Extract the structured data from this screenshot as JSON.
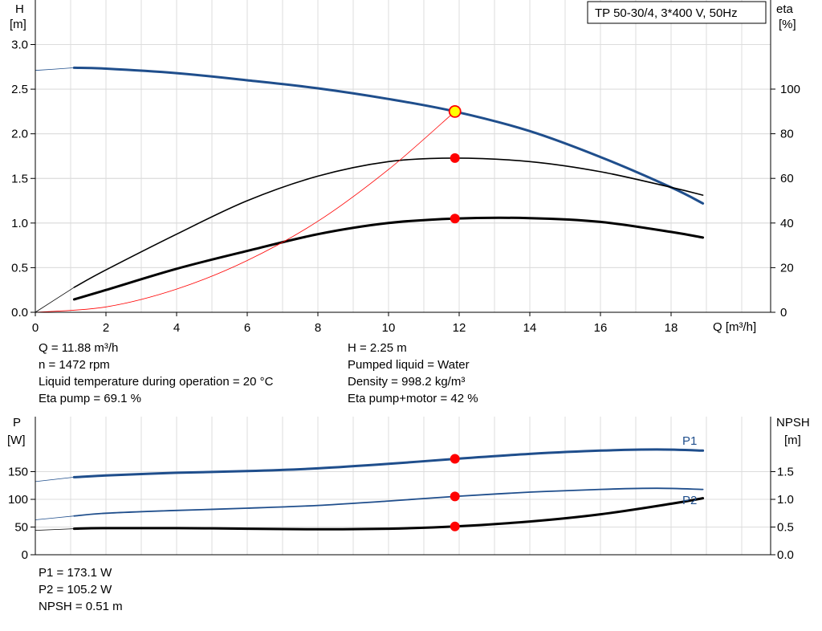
{
  "chart_data": [
    {
      "type": "line",
      "title": "TP 50-30/4, 3*400 V, 50Hz",
      "xlabel": "Q [m³/h]",
      "ylabel_left": [
        "H",
        "[m]"
      ],
      "ylabel_right": [
        "eta",
        "[%]"
      ],
      "xlim": [
        0,
        20
      ],
      "ylim_left": [
        0,
        3.0
      ],
      "ylim_right": [
        0,
        120
      ],
      "x_ticks": [
        "0",
        "2",
        "4",
        "6",
        "8",
        "10",
        "12",
        "14",
        "16",
        "18"
      ],
      "y_ticks_left": [
        "0.0",
        "0.5",
        "1.0",
        "1.5",
        "2.0",
        "2.5",
        "3.0"
      ],
      "y_ticks_right": [
        "0",
        "20",
        "40",
        "60",
        "80",
        "100"
      ],
      "grid": true,
      "series": [
        {
          "name": "",
          "axis": "left",
          "color": "#1f4e8c",
          "x": [
            0,
            1.1,
            2,
            4,
            6,
            8,
            10,
            11.88,
            14,
            16,
            18,
            18.9
          ],
          "y": [
            2.71,
            2.74,
            2.73,
            2.68,
            2.6,
            2.51,
            2.39,
            2.25,
            2.03,
            1.74,
            1.4,
            1.22
          ]
        },
        {
          "name": "",
          "axis": "right",
          "color": "#000000",
          "x": [
            0,
            1.1,
            2,
            4,
            6,
            8,
            10,
            11.88,
            14,
            16,
            18,
            18.9
          ],
          "y": [
            0,
            11.2,
            19,
            35,
            50,
            61,
            67.5,
            69.1,
            67.5,
            63,
            56,
            52.5
          ]
        },
        {
          "name": "",
          "axis": "right",
          "color": "#000000",
          "x": [
            1.1,
            2,
            4,
            6,
            8,
            10,
            11.88,
            14,
            16,
            18,
            18.9
          ],
          "y": [
            5.8,
            10,
            19.5,
            27.5,
            35,
            40,
            42,
            42.2,
            40.5,
            36,
            33.5
          ]
        },
        {
          "name": "",
          "axis": "left",
          "color": "#ff0000",
          "x": [
            0,
            2,
            4,
            6,
            8,
            10,
            11.88
          ],
          "y": [
            0,
            0.06,
            0.26,
            0.58,
            1.02,
            1.6,
            2.25
          ]
        }
      ],
      "markers": [
        {
          "axis": "left",
          "x": 11.88,
          "y": 2.25,
          "style": "duty"
        },
        {
          "axis": "right",
          "x": 11.88,
          "y": 69.1,
          "style": "dot"
        },
        {
          "axis": "right",
          "x": 11.88,
          "y": 42,
          "style": "dot"
        }
      ]
    },
    {
      "type": "line",
      "xlim": [
        0,
        20
      ],
      "ylabel_left": [
        "P",
        "[W]"
      ],
      "ylabel_right": [
        "NPSH",
        "[m]"
      ],
      "ylim_left": [
        0,
        200
      ],
      "ylim_right": [
        0,
        2.0
      ],
      "y_ticks_left": [
        "0",
        "50",
        "100",
        "150"
      ],
      "y_ticks_right": [
        "0.0",
        "0.5",
        "1.0",
        "1.5"
      ],
      "grid": true,
      "series": [
        {
          "name": "P1",
          "axis": "left",
          "color": "#1f4e8c",
          "x": [
            0,
            1.1,
            2,
            4,
            6,
            8,
            10,
            11.88,
            14,
            16,
            17.6,
            18.9
          ],
          "y": [
            132,
            140,
            143,
            148,
            151,
            156,
            164,
            173.1,
            182,
            188,
            190,
            188
          ]
        },
        {
          "name": "P2",
          "axis": "left",
          "color": "#1f4e8c",
          "x": [
            0,
            1.1,
            2,
            4,
            6,
            8,
            10,
            11.88,
            14,
            16,
            17.6,
            18.9
          ],
          "y": [
            63,
            70,
            75,
            80,
            84,
            89,
            97,
            105.2,
            113,
            118,
            120,
            118
          ]
        },
        {
          "name": "",
          "axis": "right",
          "color": "#000000",
          "x": [
            0,
            1.1,
            2,
            4,
            6,
            8,
            10,
            11.88,
            14,
            16,
            18,
            18.9
          ],
          "y": [
            0.44,
            0.47,
            0.48,
            0.48,
            0.47,
            0.46,
            0.47,
            0.51,
            0.6,
            0.73,
            0.92,
            1.02
          ]
        }
      ],
      "markers": [
        {
          "axis": "left",
          "x": 11.88,
          "y": 173.1,
          "style": "dot"
        },
        {
          "axis": "left",
          "x": 11.88,
          "y": 105.2,
          "style": "dot"
        },
        {
          "axis": "right",
          "x": 11.88,
          "y": 0.51,
          "style": "dot"
        }
      ]
    }
  ],
  "info_upper": {
    "left": [
      "Q = 11.88 m³/h",
      "n = 1472 rpm",
      "Liquid temperature during operation = 20 °C",
      "Eta pump = 69.1 %"
    ],
    "right": [
      "H = 2.25 m",
      "Pumped liquid = Water",
      "Density = 998.2 kg/m³",
      "Eta pump+motor = 42 %"
    ]
  },
  "info_lower": [
    "P1 = 173.1 W",
    "P2 = 105.2 W",
    "NPSH = 0.51 m"
  ]
}
